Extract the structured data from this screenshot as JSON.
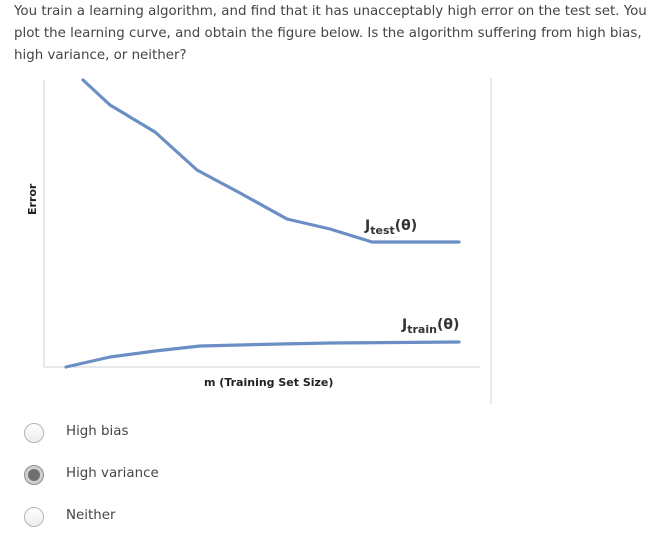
{
  "question": {
    "text": "You train a learning algorithm, and find that it has unacceptably high error on the test set. You plot the learning curve, and obtain the figure below. Is the algorithm suffering from high bias, high variance, or neither?"
  },
  "chart_data": {
    "type": "line",
    "xlabel": "m (Training Set Size)",
    "ylabel": "Error",
    "grid": false,
    "line_color": "#6b8fc5",
    "series": [
      {
        "name": "J_test(θ)",
        "label_main": "J",
        "label_sub": "test",
        "label_tail": "(θ)"
      },
      {
        "name": "J_train(θ)",
        "label_main": "J",
        "label_sub": "train",
        "label_tail": "(θ)"
      }
    ]
  },
  "options": [
    {
      "label": "High bias",
      "selected": false
    },
    {
      "label": "High variance",
      "selected": true
    },
    {
      "label": "Neither",
      "selected": false
    }
  ]
}
